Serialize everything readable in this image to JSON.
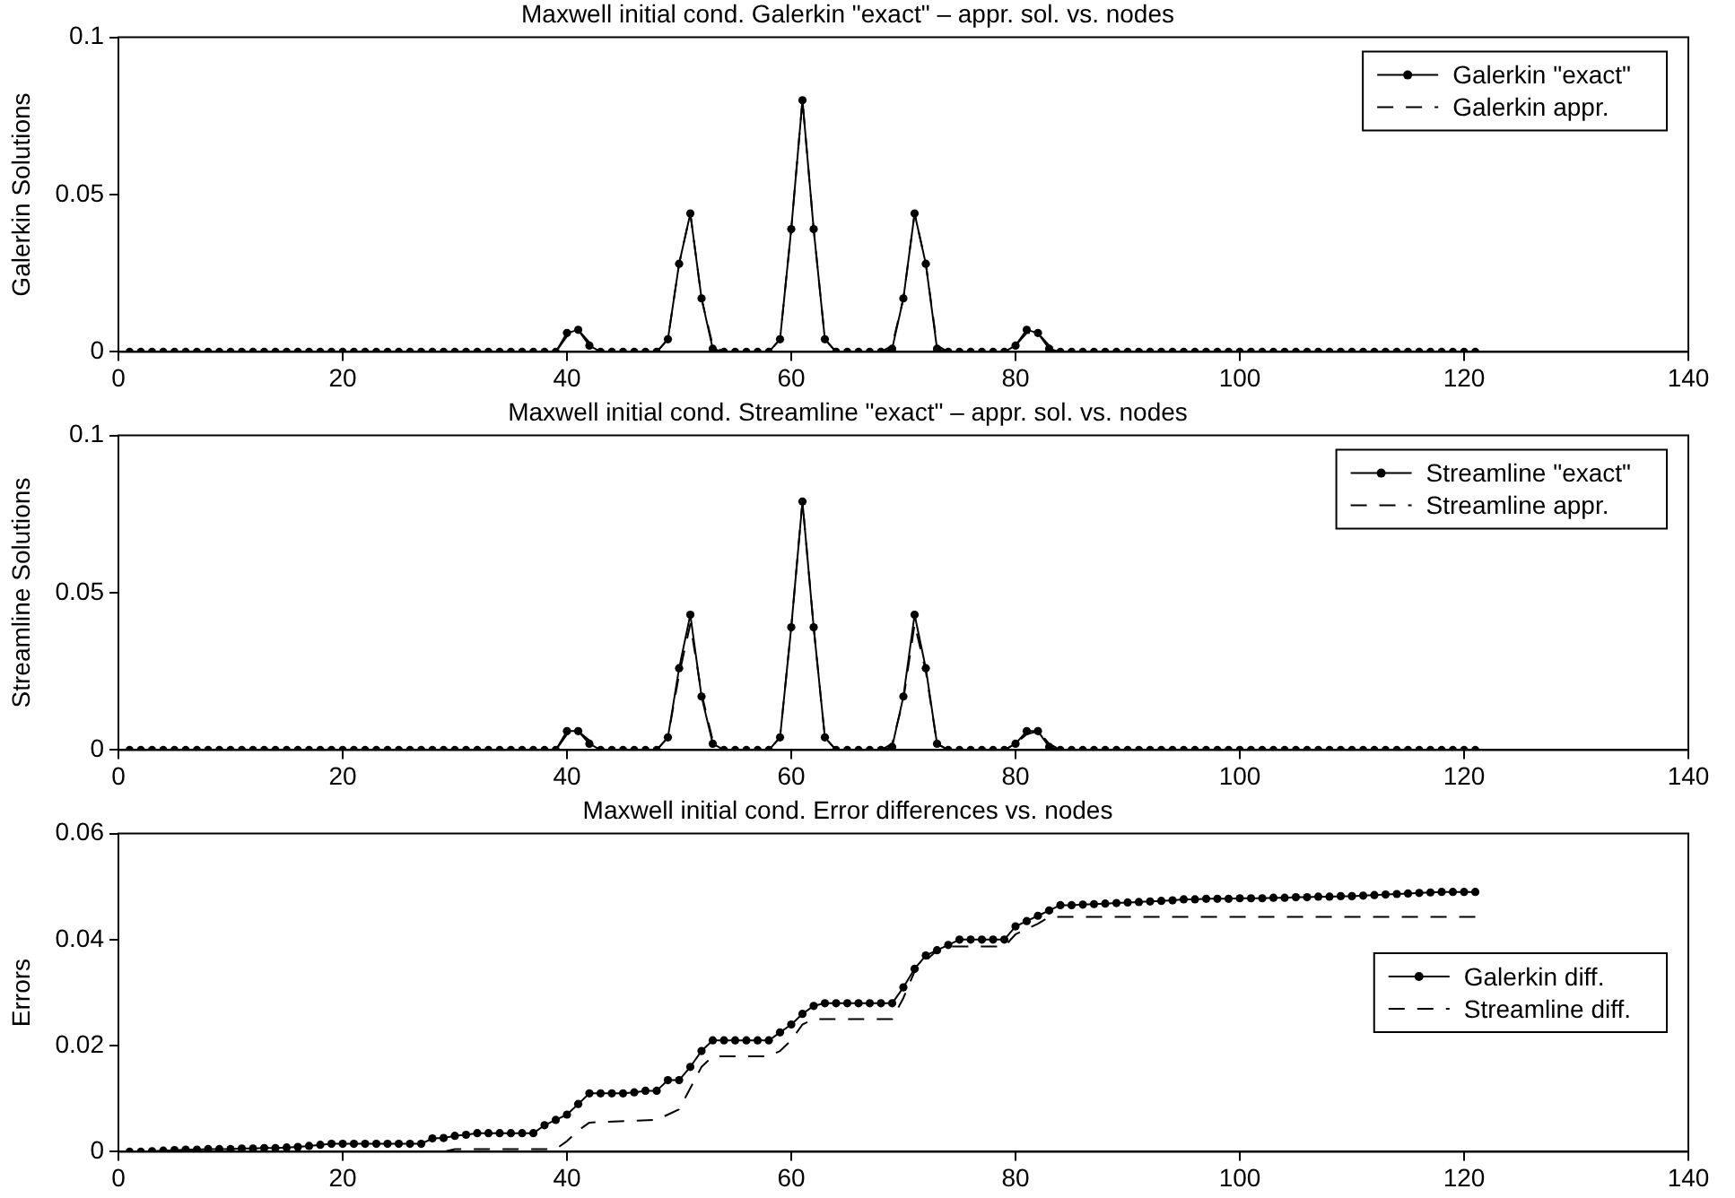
{
  "chart_data": [
    {
      "type": "line",
      "title": "Maxwell initial cond. Galerkin \"exact\" – appr. sol. vs. nodes",
      "ylabel": "Galerkin Solutions",
      "xlim": [
        0,
        140
      ],
      "xticks": [
        0,
        20,
        40,
        60,
        80,
        100,
        120,
        140
      ],
      "ylim": [
        0,
        0.1
      ],
      "yticks": [
        0,
        0.05,
        0.1
      ],
      "legend": "top right",
      "grid": false,
      "x": [
        1,
        2,
        3,
        4,
        5,
        6,
        7,
        8,
        9,
        10,
        11,
        12,
        13,
        14,
        15,
        16,
        17,
        18,
        19,
        20,
        21,
        22,
        23,
        24,
        25,
        26,
        27,
        28,
        29,
        30,
        31,
        32,
        33,
        34,
        35,
        36,
        37,
        38,
        39,
        40,
        41,
        42,
        43,
        44,
        45,
        46,
        47,
        48,
        49,
        50,
        51,
        52,
        53,
        54,
        55,
        56,
        57,
        58,
        59,
        60,
        61,
        62,
        63,
        64,
        65,
        66,
        67,
        68,
        69,
        70,
        71,
        72,
        73,
        74,
        75,
        76,
        77,
        78,
        79,
        80,
        81,
        82,
        83,
        84,
        85,
        86,
        87,
        88,
        89,
        90,
        91,
        92,
        93,
        94,
        95,
        96,
        97,
        98,
        99,
        100,
        101,
        102,
        103,
        104,
        105,
        106,
        107,
        108,
        109,
        110,
        111,
        112,
        113,
        114,
        115,
        116,
        117,
        118,
        119,
        120,
        121
      ],
      "series": [
        {
          "name": "Galerkin \"exact\"",
          "color": "#000000",
          "marker": "circle",
          "line_style": "solid",
          "values": [
            0,
            0,
            0,
            0,
            0,
            0,
            0,
            0,
            0,
            0,
            0,
            0,
            0,
            0,
            0,
            0,
            0,
            0,
            0,
            0,
            0,
            0,
            0,
            0,
            0,
            0,
            0,
            0,
            0,
            0,
            0,
            0,
            0,
            0,
            0,
            0,
            0,
            0,
            0,
            0.006,
            0.007,
            0.002,
            0,
            0,
            0,
            0,
            0,
            0,
            0.004,
            0.028,
            0.044,
            0.017,
            0.001,
            0,
            0,
            0,
            0,
            0,
            0.004,
            0.039,
            0.08,
            0.039,
            0.004,
            0,
            0,
            0,
            0,
            0,
            0.001,
            0.017,
            0.044,
            0.028,
            0.001,
            0,
            0,
            0,
            0,
            0,
            0,
            0.002,
            0.007,
            0.006,
            0.001,
            0,
            0,
            0,
            0,
            0,
            0,
            0,
            0,
            0,
            0,
            0,
            0,
            0,
            0,
            0,
            0,
            0,
            0,
            0,
            0,
            0,
            0,
            0,
            0,
            0,
            0,
            0,
            0,
            0,
            0,
            0,
            0,
            0,
            0,
            0,
            0,
            0,
            0
          ]
        },
        {
          "name": "Galerkin appr.",
          "color": "#000000",
          "marker": "none",
          "line_style": "dashed",
          "values": [
            0,
            0,
            0,
            0,
            0,
            0,
            0,
            0,
            0,
            0,
            0,
            0,
            0,
            0,
            0,
            0,
            0,
            0,
            0,
            0,
            0,
            0,
            0,
            0,
            0,
            0,
            0,
            0,
            0,
            0,
            0,
            0,
            0,
            0,
            0,
            0,
            0,
            0,
            0,
            0.005,
            0.007,
            0.003,
            0,
            0,
            0,
            0,
            0,
            0,
            0.004,
            0.028,
            0.044,
            0.017,
            0.002,
            0,
            0,
            0,
            0,
            0,
            0.004,
            0.039,
            0.08,
            0.039,
            0.004,
            0,
            0,
            0,
            0,
            0,
            0.002,
            0.017,
            0.044,
            0.028,
            0.002,
            0,
            0,
            0,
            0,
            0,
            0,
            0.002,
            0.006,
            0.006,
            0.002,
            0,
            0,
            0,
            0,
            0,
            0,
            0,
            0,
            0,
            0,
            0,
            0,
            0,
            0,
            0,
            0,
            0,
            0,
            0,
            0,
            0,
            0,
            0,
            0,
            0,
            0,
            0,
            0,
            0,
            0,
            0,
            0,
            0,
            0,
            0,
            0,
            0,
            0
          ]
        }
      ]
    },
    {
      "type": "line",
      "title": "Maxwell initial cond. Streamline \"exact\" – appr. sol. vs. nodes",
      "ylabel": "Streamline Solutions",
      "xlim": [
        0,
        140
      ],
      "xticks": [
        0,
        20,
        40,
        60,
        80,
        100,
        120,
        140
      ],
      "ylim": [
        0,
        0.1
      ],
      "yticks": [
        0,
        0.05,
        0.1
      ],
      "legend": "top right",
      "grid": false,
      "x": [
        1,
        2,
        3,
        4,
        5,
        6,
        7,
        8,
        9,
        10,
        11,
        12,
        13,
        14,
        15,
        16,
        17,
        18,
        19,
        20,
        21,
        22,
        23,
        24,
        25,
        26,
        27,
        28,
        29,
        30,
        31,
        32,
        33,
        34,
        35,
        36,
        37,
        38,
        39,
        40,
        41,
        42,
        43,
        44,
        45,
        46,
        47,
        48,
        49,
        50,
        51,
        52,
        53,
        54,
        55,
        56,
        57,
        58,
        59,
        60,
        61,
        62,
        63,
        64,
        65,
        66,
        67,
        68,
        69,
        70,
        71,
        72,
        73,
        74,
        75,
        76,
        77,
        78,
        79,
        80,
        81,
        82,
        83,
        84,
        85,
        86,
        87,
        88,
        89,
        90,
        91,
        92,
        93,
        94,
        95,
        96,
        97,
        98,
        99,
        100,
        101,
        102,
        103,
        104,
        105,
        106,
        107,
        108,
        109,
        110,
        111,
        112,
        113,
        114,
        115,
        116,
        117,
        118,
        119,
        120,
        121
      ],
      "series": [
        {
          "name": "Streamline \"exact\"",
          "color": "#000000",
          "marker": "circle",
          "line_style": "solid",
          "values": [
            0,
            0,
            0,
            0,
            0,
            0,
            0,
            0,
            0,
            0,
            0,
            0,
            0,
            0,
            0,
            0,
            0,
            0,
            0,
            0,
            0,
            0,
            0,
            0,
            0,
            0,
            0,
            0,
            0,
            0,
            0,
            0,
            0,
            0,
            0,
            0,
            0,
            0,
            0,
            0.006,
            0.006,
            0.002,
            0,
            0,
            0,
            0,
            0,
            0,
            0.004,
            0.026,
            0.043,
            0.017,
            0.002,
            0,
            0,
            0,
            0,
            0,
            0.004,
            0.039,
            0.079,
            0.039,
            0.004,
            0,
            0,
            0,
            0,
            0,
            0.001,
            0.017,
            0.043,
            0.026,
            0.002,
            0,
            0,
            0,
            0,
            0,
            0,
            0.002,
            0.006,
            0.006,
            0.001,
            0,
            0,
            0,
            0,
            0,
            0,
            0,
            0,
            0,
            0,
            0,
            0,
            0,
            0,
            0,
            0,
            0,
            0,
            0,
            0,
            0,
            0,
            0,
            0,
            0,
            0,
            0,
            0,
            0,
            0,
            0,
            0,
            0,
            0,
            0,
            0,
            0,
            0
          ]
        },
        {
          "name": "Streamline appr.",
          "color": "#000000",
          "marker": "none",
          "line_style": "dashed",
          "values": [
            0,
            0,
            0,
            0,
            0,
            0,
            0,
            0,
            0,
            0,
            0,
            0,
            0,
            0,
            0,
            0,
            0,
            0,
            0,
            0,
            0,
            0,
            0,
            0,
            0,
            0,
            0,
            0,
            0,
            0,
            0,
            0,
            0,
            0,
            0,
            0,
            0,
            0,
            0,
            0.005,
            0.006,
            0.003,
            0,
            0,
            0,
            0,
            0,
            0,
            0.004,
            0.024,
            0.04,
            0.018,
            0.003,
            0,
            0,
            0,
            0,
            0,
            0.004,
            0.039,
            0.079,
            0.039,
            0.004,
            0,
            0,
            0,
            0,
            0,
            0.002,
            0.016,
            0.04,
            0.025,
            0.002,
            0,
            0,
            0,
            0,
            0,
            0,
            0.002,
            0.005,
            0.006,
            0.002,
            0,
            0,
            0,
            0,
            0,
            0,
            0,
            0,
            0,
            0,
            0,
            0,
            0,
            0,
            0,
            0,
            0,
            0,
            0,
            0,
            0,
            0,
            0,
            0,
            0,
            0,
            0,
            0,
            0,
            0,
            0,
            0,
            0,
            0,
            0,
            0,
            0,
            0
          ]
        }
      ]
    },
    {
      "type": "line",
      "title": "Maxwell initial cond. Error differences vs. nodes",
      "ylabel": "Errors",
      "xlim": [
        0,
        140
      ],
      "xticks": [
        0,
        20,
        40,
        60,
        80,
        100,
        120,
        140
      ],
      "ylim": [
        0,
        0.06
      ],
      "yticks": [
        0,
        0.02,
        0.04,
        0.06
      ],
      "legend": "right",
      "grid": false,
      "x": [
        1,
        2,
        3,
        4,
        5,
        6,
        7,
        8,
        9,
        10,
        11,
        12,
        13,
        14,
        15,
        16,
        17,
        18,
        19,
        20,
        21,
        22,
        23,
        24,
        25,
        26,
        27,
        28,
        29,
        30,
        31,
        32,
        33,
        34,
        35,
        36,
        37,
        38,
        39,
        40,
        41,
        42,
        43,
        44,
        45,
        46,
        47,
        48,
        49,
        50,
        51,
        52,
        53,
        54,
        55,
        56,
        57,
        58,
        59,
        60,
        61,
        62,
        63,
        64,
        65,
        66,
        67,
        68,
        69,
        70,
        71,
        72,
        73,
        74,
        75,
        76,
        77,
        78,
        79,
        80,
        81,
        82,
        83,
        84,
        85,
        86,
        87,
        88,
        89,
        90,
        91,
        92,
        93,
        94,
        95,
        96,
        97,
        98,
        99,
        100,
        101,
        102,
        103,
        104,
        105,
        106,
        107,
        108,
        109,
        110,
        111,
        112,
        113,
        114,
        115,
        116,
        117,
        118,
        119,
        120,
        121
      ],
      "series": [
        {
          "name": "Galerkin diff.",
          "color": "#000000",
          "marker": "circle",
          "line_style": "solid",
          "values": [
            0,
            0,
            0.0001,
            0.0002,
            0.0003,
            0.0004,
            0.0004,
            0.0005,
            0.0005,
            0.0005,
            0.0006,
            0.0006,
            0.0007,
            0.0007,
            0.0008,
            0.0009,
            0.0011,
            0.0013,
            0.0015,
            0.0015,
            0.0015,
            0.0015,
            0.0015,
            0.0015,
            0.0015,
            0.0015,
            0.0015,
            0.0025,
            0.0026,
            0.003,
            0.0032,
            0.0035,
            0.0035,
            0.0035,
            0.0035,
            0.0035,
            0.0035,
            0.005,
            0.006,
            0.007,
            0.009,
            0.011,
            0.011,
            0.011,
            0.011,
            0.0112,
            0.0115,
            0.0115,
            0.0135,
            0.0135,
            0.016,
            0.019,
            0.021,
            0.021,
            0.021,
            0.021,
            0.021,
            0.021,
            0.0225,
            0.024,
            0.026,
            0.0275,
            0.028,
            0.028,
            0.028,
            0.028,
            0.028,
            0.028,
            0.028,
            0.031,
            0.0345,
            0.037,
            0.038,
            0.039,
            0.04,
            0.04,
            0.04,
            0.04,
            0.04,
            0.0425,
            0.0435,
            0.0445,
            0.0455,
            0.0465,
            0.0465,
            0.0466,
            0.0467,
            0.0468,
            0.0469,
            0.047,
            0.0471,
            0.0472,
            0.0473,
            0.0474,
            0.0476,
            0.0476,
            0.0477,
            0.0477,
            0.0477,
            0.0478,
            0.0478,
            0.0478,
            0.0479,
            0.0479,
            0.048,
            0.048,
            0.0481,
            0.0481,
            0.0482,
            0.0482,
            0.0483,
            0.0484,
            0.0485,
            0.0486,
            0.0487,
            0.0488,
            0.0489,
            0.049,
            0.049,
            0.049,
            0.049
          ]
        },
        {
          "name": "Streamline diff.",
          "color": "#000000",
          "marker": "none",
          "line_style": "dashed",
          "x": [
            1,
            29,
            30,
            39,
            40,
            41,
            42,
            48,
            49,
            50,
            51,
            52,
            53,
            58,
            59,
            60,
            61,
            62,
            69,
            70,
            71,
            72,
            73,
            74,
            79,
            80,
            81,
            82,
            83,
            121
          ],
          "values": [
            0,
            0,
            0.0005,
            0.0005,
            0.002,
            0.004,
            0.0055,
            0.006,
            0.007,
            0.008,
            0.012,
            0.016,
            0.018,
            0.018,
            0.019,
            0.021,
            0.024,
            0.025,
            0.025,
            0.029,
            0.034,
            0.036,
            0.038,
            0.0387,
            0.0387,
            0.041,
            0.042,
            0.043,
            0.0443,
            0.0443
          ]
        }
      ]
    }
  ]
}
